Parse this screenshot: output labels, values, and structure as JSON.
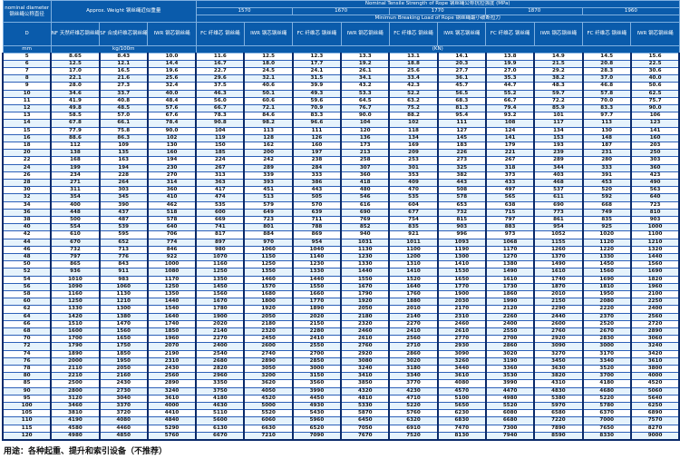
{
  "header": {
    "diameter_label": "nominal diameter 钢丝绳公称直径",
    "weight_label": "Approx. Weight 钢丝绳近似重量",
    "strength_label": "Nominal Tensile Strength of Rope 钢丝绳公称抗拉强度 (MPa)",
    "grades": [
      "1570",
      "1670",
      "1770",
      "1870",
      "1960"
    ],
    "breaking_label": "Minimun Breaking Load of Rope 钢丝绳最小破断拉力",
    "col_d": "D",
    "col_nf": "NF 天然纤维芯钢丝绳",
    "col_sf": "SF 合成纤维芯钢丝绳",
    "col_iwr": "IWR 钢芯钢丝绳",
    "col_fc": "FC 纤维芯 钢丝绳",
    "unit_mm": "mm",
    "unit_weight": "kg/100m",
    "unit_load": "(KN)"
  },
  "rows": [
    [
      "5",
      "8.65",
      "8.43",
      "10.0",
      "11.6",
      "12.5",
      "12.3",
      "13.3",
      "13.1",
      "14.1",
      "13.8",
      "14.9",
      "14.5",
      "15.6"
    ],
    [
      "6",
      "12.5",
      "12.1",
      "14.4",
      "16.7",
      "18.0",
      "17.7",
      "19.2",
      "18.8",
      "20.3",
      "19.9",
      "21.5",
      "20.8",
      "22.5"
    ],
    [
      "7",
      "17.0",
      "16.5",
      "19.6",
      "22.7",
      "24.5",
      "24.1",
      "26.1",
      "25.6",
      "27.7",
      "27.0",
      "29.2",
      "28.3",
      "30.6"
    ],
    [
      "8",
      "22.1",
      "21.6",
      "25.6",
      "29.6",
      "32.1",
      "31.5",
      "34.1",
      "33.4",
      "36.1",
      "35.3",
      "38.2",
      "37.0",
      "40.0"
    ],
    [
      "9",
      "28.0",
      "27.3",
      "32.4",
      "37.5",
      "40.6",
      "39.9",
      "43.2",
      "42.3",
      "45.7",
      "44.7",
      "48.3",
      "46.8",
      "50.6"
    ],
    [
      "10",
      "34.6",
      "33.7",
      "40.0",
      "46.3",
      "50.1",
      "49.3",
      "53.3",
      "52.2",
      "56.5",
      "55.2",
      "59.7",
      "57.8",
      "62.5"
    ],
    [
      "11",
      "41.9",
      "40.8",
      "48.4",
      "56.0",
      "60.6",
      "59.6",
      "64.5",
      "63.2",
      "68.3",
      "66.7",
      "72.2",
      "70.0",
      "75.7"
    ],
    [
      "12",
      "49.8",
      "48.5",
      "57.6",
      "66.7",
      "72.1",
      "70.9",
      "76.7",
      "75.2",
      "81.3",
      "79.4",
      "85.9",
      "83.3",
      "90.0"
    ],
    [
      "13",
      "58.5",
      "57.0",
      "67.6",
      "78.3",
      "84.6",
      "83.3",
      "90.0",
      "88.2",
      "95.4",
      "93.2",
      "101",
      "97.7",
      "106"
    ],
    [
      "14",
      "67.8",
      "66.1",
      "78.4",
      "90.8",
      "98.2",
      "96.6",
      "104",
      "102",
      "111",
      "108",
      "117",
      "113",
      "123"
    ],
    [
      "15",
      "77.9",
      "75.8",
      "90.0",
      "104",
      "113",
      "111",
      "120",
      "118",
      "127",
      "124",
      "134",
      "130",
      "141"
    ],
    [
      "16",
      "88.6",
      "86.3",
      "102",
      "119",
      "128",
      "126",
      "136",
      "134",
      "145",
      "141",
      "153",
      "148",
      "160"
    ],
    [
      "18",
      "112",
      "109",
      "130",
      "150",
      "162",
      "160",
      "173",
      "169",
      "183",
      "179",
      "193",
      "187",
      "203"
    ],
    [
      "20",
      "138",
      "135",
      "160",
      "185",
      "200",
      "197",
      "213",
      "209",
      "226",
      "221",
      "239",
      "231",
      "250"
    ],
    [
      "22",
      "168",
      "163",
      "194",
      "224",
      "242",
      "238",
      "258",
      "253",
      "273",
      "267",
      "289",
      "280",
      "303"
    ],
    [
      "24",
      "199",
      "194",
      "230",
      "267",
      "289",
      "284",
      "307",
      "301",
      "325",
      "318",
      "344",
      "333",
      "360"
    ],
    [
      "26",
      "234",
      "228",
      "270",
      "313",
      "339",
      "333",
      "360",
      "353",
      "382",
      "373",
      "403",
      "391",
      "423"
    ],
    [
      "28",
      "271",
      "264",
      "314",
      "363",
      "393",
      "386",
      "418",
      "409",
      "443",
      "433",
      "468",
      "453",
      "490"
    ],
    [
      "30",
      "311",
      "303",
      "360",
      "417",
      "451",
      "443",
      "480",
      "470",
      "508",
      "497",
      "537",
      "520",
      "563"
    ],
    [
      "32",
      "354",
      "345",
      "410",
      "474",
      "513",
      "505",
      "546",
      "535",
      "578",
      "565",
      "611",
      "592",
      "640"
    ],
    [
      "34",
      "400",
      "390",
      "462",
      "535",
      "579",
      "570",
      "616",
      "604",
      "653",
      "638",
      "690",
      "668",
      "723"
    ],
    [
      "36",
      "448",
      "437",
      "518",
      "600",
      "649",
      "639",
      "690",
      "677",
      "732",
      "715",
      "773",
      "749",
      "810"
    ],
    [
      "38",
      "500",
      "487",
      "578",
      "669",
      "723",
      "711",
      "769",
      "754",
      "815",
      "797",
      "861",
      "835",
      "903"
    ],
    [
      "40",
      "554",
      "539",
      "640",
      "741",
      "801",
      "788",
      "852",
      "835",
      "903",
      "883",
      "954",
      "925",
      "1000"
    ],
    [
      "42",
      "610",
      "595",
      "706",
      "817",
      "884",
      "869",
      "940",
      "921",
      "996",
      "973",
      "1052",
      "1020",
      "1100"
    ],
    [
      "44",
      "670",
      "652",
      "774",
      "897",
      "970",
      "954",
      "1031",
      "1011",
      "1093",
      "1068",
      "1155",
      "1120",
      "1210"
    ],
    [
      "46",
      "732",
      "713",
      "846",
      "980",
      "1060",
      "1040",
      "1130",
      "1100",
      "1190",
      "1170",
      "1260",
      "1220",
      "1320"
    ],
    [
      "48",
      "797",
      "776",
      "922",
      "1070",
      "1150",
      "1140",
      "1230",
      "1200",
      "1300",
      "1270",
      "1370",
      "1330",
      "1440"
    ],
    [
      "50",
      "865",
      "843",
      "1000",
      "1160",
      "1250",
      "1230",
      "1330",
      "1310",
      "1410",
      "1380",
      "1490",
      "1450",
      "1560"
    ],
    [
      "52",
      "936",
      "911",
      "1080",
      "1250",
      "1350",
      "1330",
      "1440",
      "1410",
      "1530",
      "1490",
      "1610",
      "1560",
      "1690"
    ],
    [
      "54",
      "1010",
      "983",
      "1170",
      "1350",
      "1460",
      "1440",
      "1550",
      "1520",
      "1650",
      "1610",
      "1740",
      "1690",
      "1820"
    ],
    [
      "56",
      "1090",
      "1060",
      "1250",
      "1450",
      "1570",
      "1550",
      "1670",
      "1640",
      "1770",
      "1730",
      "1870",
      "1810",
      "1960"
    ],
    [
      "58",
      "1160",
      "1130",
      "1350",
      "1560",
      "1680",
      "1660",
      "1790",
      "1760",
      "1900",
      "1860",
      "2010",
      "1950",
      "2100"
    ],
    [
      "60",
      "1250",
      "1210",
      "1440",
      "1670",
      "1800",
      "1770",
      "1920",
      "1880",
      "2030",
      "1990",
      "2150",
      "2080",
      "2250"
    ],
    [
      "62",
      "1330",
      "1300",
      "1540",
      "1780",
      "1920",
      "1890",
      "2050",
      "2010",
      "2170",
      "2120",
      "2290",
      "2220",
      "2400"
    ],
    [
      "64",
      "1420",
      "1380",
      "1640",
      "1900",
      "2050",
      "2020",
      "2180",
      "2140",
      "2310",
      "2260",
      "2440",
      "2370",
      "2560"
    ],
    [
      "66",
      "1510",
      "1470",
      "1740",
      "2020",
      "2180",
      "2150",
      "2320",
      "2270",
      "2460",
      "2400",
      "2600",
      "2520",
      "2720"
    ],
    [
      "68",
      "1600",
      "1560",
      "1850",
      "2140",
      "2320",
      "2280",
      "2460",
      "2410",
      "2610",
      "2550",
      "2760",
      "2670",
      "2890"
    ],
    [
      "70",
      "1700",
      "1650",
      "1960",
      "2270",
      "2450",
      "2410",
      "2610",
      "2560",
      "2770",
      "2700",
      "2920",
      "2830",
      "3060"
    ],
    [
      "72",
      "1790",
      "1750",
      "2070",
      "2400",
      "2600",
      "2550",
      "2760",
      "2710",
      "2930",
      "2860",
      "3090",
      "3000",
      "3240"
    ],
    [
      "74",
      "1890",
      "1850",
      "2190",
      "2540",
      "2740",
      "2700",
      "2920",
      "2860",
      "3090",
      "3020",
      "3270",
      "3170",
      "3420"
    ],
    [
      "76",
      "2000",
      "1950",
      "2310",
      "2680",
      "2890",
      "2850",
      "3080",
      "3020",
      "3260",
      "3190",
      "3450",
      "3340",
      "3610"
    ],
    [
      "78",
      "2110",
      "2050",
      "2430",
      "2820",
      "3050",
      "3000",
      "3240",
      "3180",
      "3440",
      "3360",
      "3630",
      "3520",
      "3800"
    ],
    [
      "80",
      "2210",
      "2160",
      "2560",
      "2960",
      "3200",
      "3150",
      "3410",
      "3340",
      "3610",
      "3530",
      "3820",
      "3700",
      "4000"
    ],
    [
      "85",
      "2500",
      "2430",
      "2890",
      "3350",
      "3620",
      "3560",
      "3850",
      "3770",
      "4080",
      "3990",
      "4310",
      "4180",
      "4520"
    ],
    [
      "90",
      "2800",
      "2730",
      "3240",
      "3750",
      "4050",
      "3990",
      "4320",
      "4230",
      "4570",
      "4470",
      "4830",
      "4680",
      "5060"
    ],
    [
      "95",
      "3120",
      "3040",
      "3610",
      "4180",
      "4520",
      "4450",
      "4810",
      "4710",
      "5100",
      "4980",
      "5380",
      "5220",
      "5640"
    ],
    [
      "100",
      "3460",
      "3370",
      "4000",
      "4630",
      "5000",
      "4930",
      "5330",
      "5220",
      "5650",
      "5520",
      "5970",
      "5780",
      "6250"
    ],
    [
      "105",
      "3810",
      "3720",
      "4410",
      "5110",
      "5520",
      "5430",
      "5870",
      "5760",
      "6230",
      "6080",
      "6580",
      "6370",
      "6890"
    ],
    [
      "110",
      "4190",
      "4080",
      "4840",
      "5600",
      "6060",
      "5960",
      "6450",
      "6320",
      "6830",
      "6680",
      "7220",
      "7000",
      "7570"
    ],
    [
      "115",
      "4580",
      "4460",
      "5290",
      "6130",
      "6630",
      "6520",
      "7050",
      "6910",
      "7470",
      "7300",
      "7890",
      "7650",
      "8270"
    ],
    [
      "120",
      "4980",
      "4850",
      "5760",
      "6670",
      "7210",
      "7090",
      "7670",
      "7520",
      "8130",
      "7940",
      "8590",
      "8330",
      "9000"
    ]
  ],
  "footer_note": "用途：各种起重、提升和索引设备（不推荐）",
  "colors": {
    "header_bg": "#0a5bab",
    "row_alt": "#e6f3fc",
    "border": "#0a2a6a"
  }
}
